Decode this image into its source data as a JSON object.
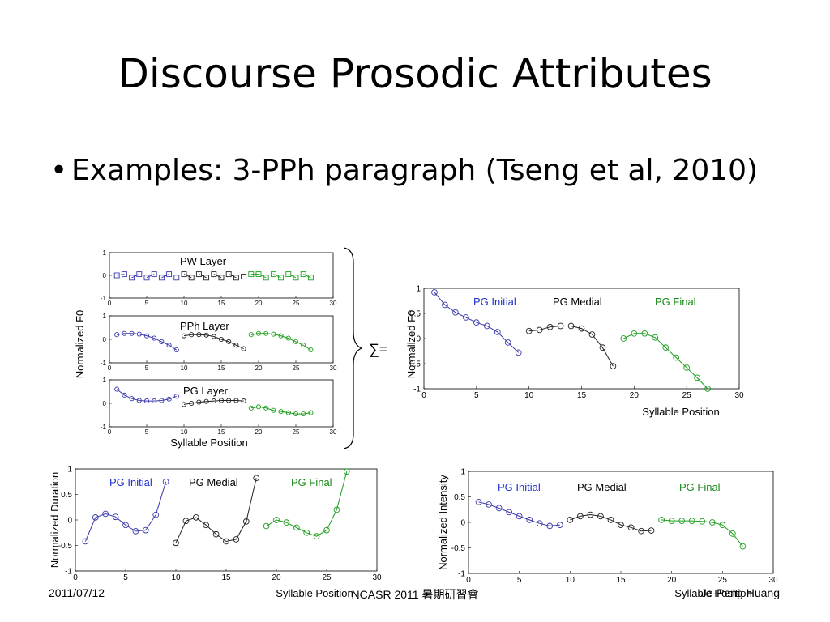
{
  "slide": {
    "title": "Discourse Prosodic Attributes",
    "bullet_symbol": "•",
    "bullet": "Examples: 3-PPh paragraph (Tseng et al, 2010)",
    "sum_symbol": "∑=",
    "footer": {
      "date": "2011/07/12",
      "center": "NCASR 2011 暑期研習會",
      "author": "Je-Peng Huang"
    }
  },
  "colors": {
    "initial": "#3a3aaa",
    "medial": "#222222",
    "final": "#1e9e1e",
    "initial_label": "#1f2fd0",
    "final_label": "#178a17"
  },
  "chart_data": [
    {
      "id": "pw",
      "type": "line",
      "marker": "square",
      "title": "PW Layer",
      "xlabel": "",
      "ylabel": "",
      "xlim": [
        0,
        30
      ],
      "ylim": [
        -1,
        1
      ],
      "xticks": [
        "0",
        "5",
        "10",
        "15",
        "20",
        "25",
        "30"
      ],
      "yticks": [
        "-1",
        "0",
        "1"
      ],
      "series": [
        {
          "role": "initial",
          "x": [
            1,
            2,
            3,
            4,
            5,
            6,
            7,
            8,
            9
          ],
          "y": [
            0,
            0.05,
            -0.1,
            0.05,
            -0.1,
            0.05,
            -0.1,
            0.05,
            -0.1
          ],
          "segments": [
            [
              0,
              1
            ],
            [
              2,
              3
            ],
            [
              4,
              5
            ],
            [
              6,
              7
            ],
            [
              8,
              8
            ]
          ]
        },
        {
          "role": "medial",
          "x": [
            10,
            11,
            12,
            13,
            14,
            15,
            16,
            17,
            18
          ],
          "y": [
            0.05,
            -0.1,
            0.05,
            -0.1,
            0.05,
            -0.1,
            0.05,
            -0.1,
            -0.05
          ],
          "segments": [
            [
              0,
              1
            ],
            [
              2,
              3
            ],
            [
              4,
              5
            ],
            [
              6,
              7
            ],
            [
              8,
              8
            ]
          ]
        },
        {
          "role": "final",
          "x": [
            19,
            20,
            21,
            22,
            23,
            24,
            25,
            26,
            27
          ],
          "y": [
            0.05,
            0.05,
            -0.1,
            0.05,
            -0.1,
            0.05,
            -0.1,
            0.05,
            -0.1
          ],
          "segments": [
            [
              0,
              2
            ],
            [
              3,
              4
            ],
            [
              5,
              6
            ],
            [
              7,
              8
            ]
          ]
        }
      ]
    },
    {
      "id": "pph",
      "type": "line",
      "marker": "circle",
      "title": "PPh Layer",
      "xlabel": "",
      "ylabel": "",
      "xlim": [
        0,
        30
      ],
      "ylim": [
        -1,
        1
      ],
      "xticks": [
        "0",
        "5",
        "10",
        "15",
        "20",
        "25",
        "30"
      ],
      "yticks": [
        "-1",
        "0",
        "1"
      ],
      "series": [
        {
          "role": "initial",
          "x": [
            1,
            2,
            3,
            4,
            5,
            6,
            7,
            8,
            9
          ],
          "y": [
            0.2,
            0.25,
            0.25,
            0.22,
            0.15,
            0.05,
            -0.1,
            -0.25,
            -0.45
          ]
        },
        {
          "role": "medial",
          "x": [
            10,
            11,
            12,
            13,
            14,
            15,
            16,
            17,
            18
          ],
          "y": [
            0.15,
            0.2,
            0.2,
            0.18,
            0.12,
            0,
            -0.1,
            -0.25,
            -0.4
          ]
        },
        {
          "role": "final",
          "x": [
            19,
            20,
            21,
            22,
            23,
            24,
            25,
            26,
            27
          ],
          "y": [
            0.2,
            0.25,
            0.25,
            0.22,
            0.15,
            0.05,
            -0.1,
            -0.25,
            -0.45
          ]
        }
      ]
    },
    {
      "id": "pg",
      "type": "line",
      "marker": "circle",
      "title": "PG Layer",
      "xlabel": "Syllable Position",
      "ylabel": "",
      "xlim": [
        0,
        30
      ],
      "ylim": [
        -1,
        1
      ],
      "xticks": [
        "0",
        "5",
        "10",
        "15",
        "20",
        "25",
        "30"
      ],
      "yticks": [
        "-1",
        "0",
        "1"
      ],
      "series": [
        {
          "role": "initial",
          "x": [
            1,
            2,
            3,
            4,
            5,
            6,
            7,
            8,
            9
          ],
          "y": [
            0.6,
            0.35,
            0.2,
            0.12,
            0.1,
            0.1,
            0.12,
            0.18,
            0.3
          ]
        },
        {
          "role": "medial",
          "x": [
            10,
            11,
            12,
            13,
            14,
            15,
            16,
            17,
            18
          ],
          "y": [
            -0.05,
            0,
            0.05,
            0.08,
            0.1,
            0.12,
            0.12,
            0.12,
            0.1
          ]
        },
        {
          "role": "final",
          "x": [
            19,
            20,
            21,
            22,
            23,
            24,
            25,
            26,
            27
          ],
          "y": [
            -0.2,
            -0.15,
            -0.2,
            -0.3,
            -0.35,
            -0.4,
            -0.45,
            -0.45,
            -0.4
          ]
        }
      ]
    },
    {
      "id": "f0",
      "type": "line",
      "marker": "circle",
      "xlabel": "Syllable Position",
      "ylabel": "",
      "xlim": [
        0,
        30
      ],
      "ylim": [
        -1,
        1
      ],
      "xticks": [
        "0",
        "5",
        "10",
        "15",
        "20",
        "25",
        "30"
      ],
      "yticks": [
        "-1",
        "-0.5",
        "0",
        "0.5",
        "1"
      ],
      "series": [
        {
          "role": "initial",
          "name": "PG Initial",
          "x": [
            1,
            2,
            3,
            4,
            5,
            6,
            7,
            8,
            9
          ],
          "y": [
            0.92,
            0.67,
            0.52,
            0.42,
            0.32,
            0.25,
            0.13,
            -0.08,
            -0.28
          ]
        },
        {
          "role": "medial",
          "name": "PG Medial",
          "x": [
            10,
            11,
            12,
            13,
            14,
            15,
            16,
            17,
            18
          ],
          "y": [
            0.15,
            0.17,
            0.23,
            0.25,
            0.25,
            0.2,
            0.08,
            -0.18,
            -0.55
          ]
        },
        {
          "role": "final",
          "name": "PG Final",
          "x": [
            19,
            20,
            21,
            22,
            23,
            24,
            25,
            26,
            27
          ],
          "y": [
            0,
            0.1,
            0.1,
            0.02,
            -0.18,
            -0.38,
            -0.58,
            -0.78,
            -1.0
          ]
        }
      ]
    },
    {
      "id": "duration",
      "type": "line",
      "marker": "circle",
      "xlabel": "Syllable Position",
      "ylabel": "Normalized Duration",
      "xlim": [
        0,
        30
      ],
      "ylim": [
        -1,
        1
      ],
      "xticks": [
        "0",
        "5",
        "10",
        "15",
        "20",
        "25",
        "30"
      ],
      "yticks": [
        "-1",
        "-0.5",
        "0",
        "0.5",
        "1"
      ],
      "series": [
        {
          "role": "initial",
          "name": "PG Initial",
          "x": [
            1,
            2,
            3,
            4,
            5,
            6,
            7,
            8,
            9
          ],
          "y": [
            -0.42,
            0.05,
            0.12,
            0.06,
            -0.1,
            -0.22,
            -0.2,
            0.1,
            0.75
          ]
        },
        {
          "role": "medial",
          "name": "PG Medial",
          "x": [
            10,
            11,
            12,
            13,
            14,
            15,
            16,
            17,
            18
          ],
          "y": [
            -0.45,
            -0.02,
            0.05,
            -0.1,
            -0.28,
            -0.42,
            -0.38,
            -0.03,
            0.82
          ]
        },
        {
          "role": "final",
          "name": "PG Final",
          "x": [
            19,
            20,
            21,
            22,
            23,
            24,
            25,
            26,
            27
          ],
          "y": [
            -0.12,
            0,
            -0.05,
            -0.15,
            -0.25,
            -0.32,
            -0.2,
            0.2,
            0.95
          ]
        }
      ]
    },
    {
      "id": "intensity",
      "type": "line",
      "marker": "circle",
      "xlabel": "Syllable Position",
      "ylabel": "Normalized Intensity",
      "xlim": [
        0,
        30
      ],
      "ylim": [
        -1,
        1
      ],
      "xticks": [
        "0",
        "5",
        "10",
        "15",
        "20",
        "25",
        "30"
      ],
      "yticks": [
        "-1",
        "-0.5",
        "0",
        "0.5",
        "1"
      ],
      "series": [
        {
          "role": "initial",
          "name": "PG Initial",
          "x": [
            1,
            2,
            3,
            4,
            5,
            6,
            7,
            8,
            9
          ],
          "y": [
            0.4,
            0.35,
            0.28,
            0.2,
            0.12,
            0.05,
            -0.02,
            -0.07,
            -0.05
          ]
        },
        {
          "role": "medial",
          "name": "PG Medial",
          "x": [
            10,
            11,
            12,
            13,
            14,
            15,
            16,
            17,
            18
          ],
          "y": [
            0.05,
            0.12,
            0.15,
            0.12,
            0.05,
            -0.05,
            -0.1,
            -0.17,
            -0.16
          ]
        },
        {
          "role": "final",
          "name": "PG Final",
          "x": [
            19,
            20,
            21,
            22,
            23,
            24,
            25,
            26,
            27
          ],
          "y": [
            0.05,
            0.03,
            0.03,
            0.03,
            0.02,
            0,
            -0.05,
            -0.22,
            -0.47
          ]
        }
      ]
    }
  ],
  "axis_labels": {
    "shared_f0_left": "Normalized F0",
    "f0_right": "Normalized F0"
  }
}
